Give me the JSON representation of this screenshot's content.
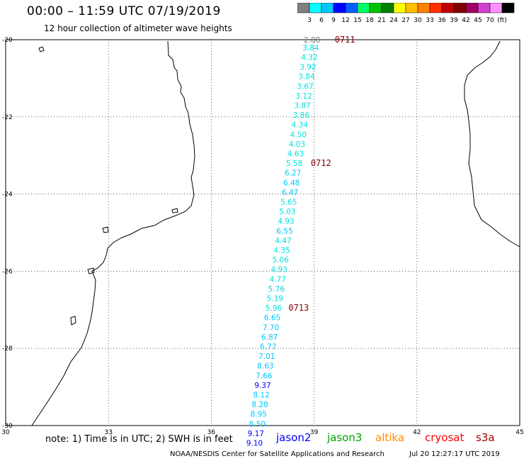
{
  "header": {
    "title": "00:00 – 11:59 UTC 07/19/2019",
    "subtitle": "12 hour collection of altimeter wave heights"
  },
  "scale": {
    "colors": [
      "#808080",
      "#00ffff",
      "#00c8ff",
      "#0000ff",
      "#0060ff",
      "#00ff66",
      "#00c000",
      "#008000",
      "#ffff00",
      "#ffc000",
      "#ff8000",
      "#ff3000",
      "#c00000",
      "#800000",
      "#a00060",
      "#d040d0",
      "#ff90ff",
      "#000000"
    ],
    "labels": [
      "3",
      "6",
      "9",
      "12",
      "15",
      "18",
      "21",
      "24",
      "27",
      "30",
      "33",
      "36",
      "39",
      "42",
      "45",
      "70",
      "(ft)"
    ]
  },
  "axes": {
    "lat_ticks": [
      "-20",
      "-22",
      "-24",
      "-26",
      "-28",
      "-30"
    ],
    "lon_ticks": [
      "30",
      "33",
      "36",
      "39",
      "42",
      "45"
    ]
  },
  "track": {
    "values": [
      {
        "v": "2.88",
        "lat": -20.0,
        "lon": 38.94,
        "color": "#808080"
      },
      {
        "v": "3.84",
        "lat": -20.2,
        "lon": 38.9,
        "color": "#00e0e0"
      },
      {
        "v": "4.32",
        "lat": -20.45,
        "lon": 38.86,
        "color": "#00e0e0"
      },
      {
        "v": "3.92",
        "lat": -20.7,
        "lon": 38.82,
        "color": "#00e0e0"
      },
      {
        "v": "3.84",
        "lat": -20.95,
        "lon": 38.78,
        "color": "#00e0e0"
      },
      {
        "v": "3.67",
        "lat": -21.2,
        "lon": 38.74,
        "color": "#00e0e0"
      },
      {
        "v": "3.12",
        "lat": -21.45,
        "lon": 38.7,
        "color": "#00e0e0"
      },
      {
        "v": "3.87",
        "lat": -21.7,
        "lon": 38.66,
        "color": "#00e0e0"
      },
      {
        "v": "3.86",
        "lat": -21.95,
        "lon": 38.62,
        "color": "#00e0e0"
      },
      {
        "v": "4.34",
        "lat": -22.2,
        "lon": 38.58,
        "color": "#00e0e0"
      },
      {
        "v": "4.50",
        "lat": -22.45,
        "lon": 38.54,
        "color": "#00e0e0"
      },
      {
        "v": "4.03",
        "lat": -22.7,
        "lon": 38.5,
        "color": "#00e0e0"
      },
      {
        "v": "4.63",
        "lat": -22.95,
        "lon": 38.46,
        "color": "#00e0e0"
      },
      {
        "v": "5.58",
        "lat": -23.2,
        "lon": 38.42,
        "color": "#00e0e0"
      },
      {
        "v": "6.27",
        "lat": -23.45,
        "lon": 38.38,
        "color": "#00c8ff"
      },
      {
        "v": "6.48",
        "lat": -23.7,
        "lon": 38.34,
        "color": "#00c8ff"
      },
      {
        "v": "6.47",
        "lat": -23.95,
        "lon": 38.3,
        "color": "#00c8ff"
      },
      {
        "v": "5.65",
        "lat": -24.2,
        "lon": 38.26,
        "color": "#00e0e0"
      },
      {
        "v": "5.03",
        "lat": -24.45,
        "lon": 38.22,
        "color": "#00e0e0"
      },
      {
        "v": "4.93",
        "lat": -24.7,
        "lon": 38.18,
        "color": "#00e0e0"
      },
      {
        "v": "6.55",
        "lat": -24.95,
        "lon": 38.14,
        "color": "#00c8ff"
      },
      {
        "v": "4.47",
        "lat": -25.2,
        "lon": 38.1,
        "color": "#00e0e0"
      },
      {
        "v": "4.35",
        "lat": -25.45,
        "lon": 38.06,
        "color": "#00e0e0"
      },
      {
        "v": "5.06",
        "lat": -25.7,
        "lon": 38.02,
        "color": "#00e0e0"
      },
      {
        "v": "4.93",
        "lat": -25.95,
        "lon": 37.98,
        "color": "#00e0e0"
      },
      {
        "v": "4.77",
        "lat": -26.2,
        "lon": 37.94,
        "color": "#00e0e0"
      },
      {
        "v": "5.76",
        "lat": -26.45,
        "lon": 37.9,
        "color": "#00e0e0"
      },
      {
        "v": "5.19",
        "lat": -26.7,
        "lon": 37.86,
        "color": "#00e0e0"
      },
      {
        "v": "5.96",
        "lat": -26.95,
        "lon": 37.82,
        "color": "#00e0e0"
      },
      {
        "v": "6.65",
        "lat": -27.2,
        "lon": 37.78,
        "color": "#00c8ff"
      },
      {
        "v": "7.70",
        "lat": -27.45,
        "lon": 37.74,
        "color": "#00c8ff"
      },
      {
        "v": "6.87",
        "lat": -27.7,
        "lon": 37.7,
        "color": "#00c8ff"
      },
      {
        "v": "6.77",
        "lat": -27.95,
        "lon": 37.66,
        "color": "#00c8ff"
      },
      {
        "v": "7.01",
        "lat": -28.2,
        "lon": 37.62,
        "color": "#00c8ff"
      },
      {
        "v": "8.63",
        "lat": -28.45,
        "lon": 37.58,
        "color": "#00c8ff"
      },
      {
        "v": "7.66",
        "lat": -28.7,
        "lon": 37.54,
        "color": "#00c8ff"
      },
      {
        "v": "9.37",
        "lat": -28.95,
        "lon": 37.5,
        "color": "#0000ff"
      },
      {
        "v": "8.12",
        "lat": -29.2,
        "lon": 37.46,
        "color": "#00c8ff"
      },
      {
        "v": "8.28",
        "lat": -29.45,
        "lon": 37.42,
        "color": "#00c8ff"
      },
      {
        "v": "8.95",
        "lat": -29.7,
        "lon": 37.38,
        "color": "#00c8ff"
      },
      {
        "v": "8.50",
        "lat": -29.95,
        "lon": 37.34,
        "color": "#00c8ff"
      },
      {
        "v": "9.17",
        "lat": -30.2,
        "lon": 37.3,
        "color": "#0000ff"
      },
      {
        "v": "9.10",
        "lat": -30.45,
        "lon": 37.26,
        "color": "#0000ff"
      }
    ],
    "time_tags": [
      {
        "label": "0711",
        "lat": -20.0,
        "lon": 39.9,
        "color": "#800000"
      },
      {
        "label": "0712",
        "lat": -23.2,
        "lon": 39.2,
        "color": "#800000"
      },
      {
        "label": "0713",
        "lat": -26.95,
        "lon": 38.55,
        "color": "#800000"
      }
    ]
  },
  "footer": {
    "note": "note: 1) Time is in UTC; 2) SWH is in feet",
    "credit": "NOAA/NESDIS Center for Satellite Applications and Research",
    "date": "Jul 20 12:27:17 UTC 2019",
    "legend": [
      {
        "label": "jason2",
        "color": "#0000ff"
      },
      {
        "label": "jason3",
        "color": "#00a000"
      },
      {
        "label": "altika",
        "color": "#ff8c00"
      },
      {
        "label": "cryosat",
        "color": "#ff0000"
      },
      {
        "label": "s3a",
        "color": "#a00000"
      }
    ]
  }
}
